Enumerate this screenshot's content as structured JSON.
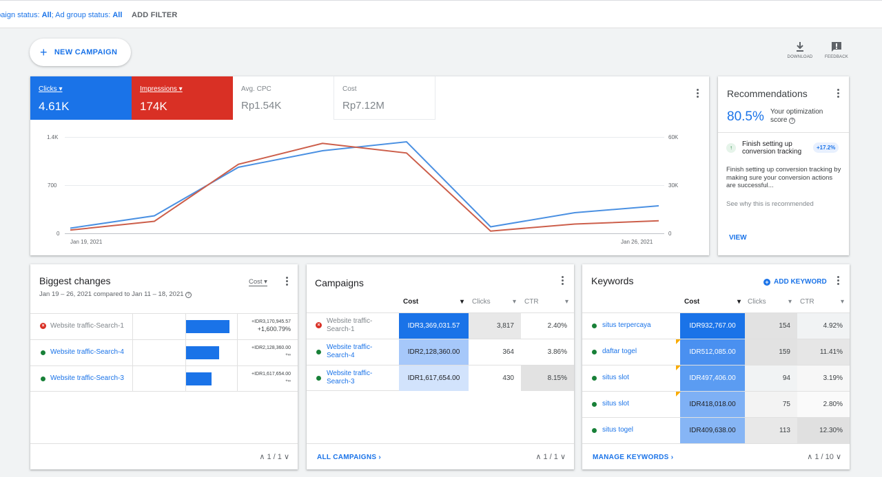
{
  "filter": {
    "prefix": "mpaign status: ",
    "campaign_status": "All",
    "sep": "; Ad group status: ",
    "adgroup_status": "All",
    "add_filter": "ADD FILTER"
  },
  "new_campaign": "NEW CAMPAIGN",
  "top_actions": {
    "download": "DOWNLOAD",
    "feedback": "FEEDBACK"
  },
  "metrics": [
    {
      "label": "Clicks",
      "value": "4.61K",
      "color": "#1a73e8"
    },
    {
      "label": "Impressions",
      "value": "174K",
      "color": "#d93025"
    },
    {
      "label": "Avg. CPC",
      "value": "Rp1.54K"
    },
    {
      "label": "Cost",
      "value": "Rp7.12M"
    }
  ],
  "chart_data": {
    "type": "line",
    "x": [
      "Jan 19, 2021",
      "Jan 20, 2021",
      "Jan 21, 2021",
      "Jan 22, 2021",
      "Jan 23, 2021",
      "Jan 24, 2021",
      "Jan 25, 2021",
      "Jan 26, 2021"
    ],
    "x_tick_labels": [
      "Jan 19, 2021",
      "Jan 26, 2021"
    ],
    "y_left": {
      "ticks": [
        "1.4K",
        "700",
        "0"
      ],
      "range": [
        0,
        1400
      ]
    },
    "y_right": {
      "ticks": [
        "60K",
        "30K",
        "0"
      ],
      "range": [
        0,
        60000
      ]
    },
    "series": [
      {
        "name": "Clicks",
        "color": "#4a90e2",
        "axis": "left",
        "values": [
          75,
          255,
          960,
          1200,
          1330,
          95,
          300,
          400
        ]
      },
      {
        "name": "Impressions",
        "color": "#cc5e4a",
        "axis": "right",
        "values": [
          2000,
          7500,
          43000,
          56000,
          50000,
          1400,
          5800,
          7800
        ]
      }
    ],
    "grid": true
  },
  "recommendations": {
    "title": "Recommendations",
    "score": "80.5%",
    "score_label": "Your optimization score",
    "item_title": "Finish setting up conversion tracking",
    "item_uplift": "+17.2%",
    "item_desc": "Finish setting up conversion tracking by making sure your conversion actions are successful...",
    "why": "See why this is recommended",
    "view": "VIEW"
  },
  "biggest_changes": {
    "title": "Biggest changes",
    "subtitle": "Jan 19 – 26, 2021 compared to Jan 11 – 18, 2021",
    "metric_select": "Cost",
    "rows": [
      {
        "name": "Website traffic-Search-1",
        "status": "error",
        "change": "+IDR3,170,945.57",
        "pct": "+1,600.79%",
        "bar": 1.0
      },
      {
        "name": "Website traffic-Search-4",
        "status": "ok",
        "change": "+IDR2,128,360.00",
        "pct": "+∞",
        "bar": 0.76
      },
      {
        "name": "Website traffic-Search-3",
        "status": "ok",
        "change": "+IDR1,617,654.00",
        "pct": "+∞",
        "bar": 0.59
      }
    ],
    "pager": "1 / 1"
  },
  "campaigns": {
    "title": "Campaigns",
    "cols": [
      "Cost",
      "Clicks",
      "CTR"
    ],
    "rows": [
      {
        "name": "Website traffic-Search-1",
        "status": "error",
        "cost": "IDR3,369,031.57",
        "clicks": "3,817",
        "ctr": "2.40%"
      },
      {
        "name": "Website traffic-Search-4",
        "status": "ok",
        "cost": "IDR2,128,360.00",
        "clicks": "364",
        "ctr": "3.86%"
      },
      {
        "name": "Website traffic-Search-3",
        "status": "ok",
        "cost": "IDR1,617,654.00",
        "clicks": "430",
        "ctr": "8.15%"
      }
    ],
    "footer_link": "ALL CAMPAIGNS",
    "pager": "1 / 1"
  },
  "keywords": {
    "title": "Keywords",
    "add": "ADD KEYWORD",
    "cols": [
      "Cost",
      "Clicks",
      "CTR"
    ],
    "rows": [
      {
        "name": "situs terpercaya",
        "cost": "IDR932,767.00",
        "clicks": "154",
        "ctr": "4.92%"
      },
      {
        "name": "daftar togel",
        "cost": "IDR512,085.00",
        "clicks": "159",
        "ctr": "11.41%"
      },
      {
        "name": "situs slot",
        "cost": "IDR497,406.00",
        "clicks": "94",
        "ctr": "3.19%"
      },
      {
        "name": "situs slot",
        "cost": "IDR418,018.00",
        "clicks": "75",
        "ctr": "2.80%"
      },
      {
        "name": "situs togel",
        "cost": "IDR409,638.00",
        "clicks": "113",
        "ctr": "12.30%"
      }
    ],
    "footer_link": "MANAGE KEYWORDS",
    "pager": "1 / 10"
  }
}
